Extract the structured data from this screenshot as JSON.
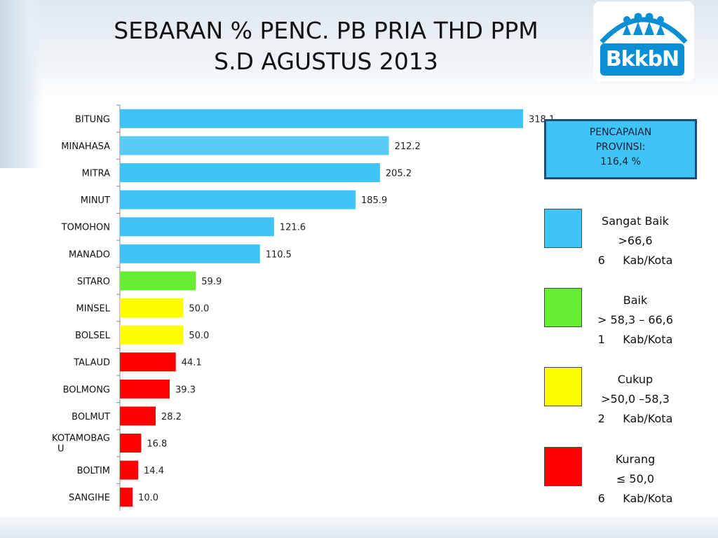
{
  "title": {
    "line1": "SEBARAN % PENC. PB PRIA THD PPM",
    "line2": "S.D AGUSTUS 2013"
  },
  "logo": {
    "text": "BkkbN",
    "icon": "family-figures-icon",
    "color": "#0a8fd4"
  },
  "achievement": {
    "line1": "PENCAPAIAN",
    "line2": "PROVINSI:",
    "line3": "116,4 %"
  },
  "legend": [
    {
      "label": "Sangat Baik",
      "range": ">66,6",
      "count": "6",
      "unit": "Kab/Kota",
      "color": "#3fc5f5"
    },
    {
      "label": "Baik",
      "range": "> 58,3 – 66,6",
      "count": "1",
      "unit": "Kab/Kota",
      "color": "#66ee33"
    },
    {
      "label": "Cukup",
      "range": ">50,0 –58,3",
      "count": "2",
      "unit": "Kab/Kota",
      "color": "#ffff00"
    },
    {
      "label": "Kurang",
      "range": "≤ 50,0",
      "count": "6",
      "unit": "Kab/Kota",
      "color": "#ff0000"
    }
  ],
  "chart_data": {
    "type": "bar",
    "orientation": "horizontal",
    "title": "SEBARAN % PENC. PB PRIA THD PPM S.D AGUSTUS 2013",
    "xlabel": "",
    "ylabel": "",
    "grid": false,
    "categories": [
      "BITUNG",
      "MINAHASA",
      "MITRA",
      "MINUT",
      "TOMOHON",
      "MANADO",
      "SITARO",
      "MINSEL",
      "BOLSEL",
      "TALAUD",
      "BOLMONG",
      "BOLMUT",
      "KOTAMOBAGU",
      "BOLTIM",
      "SANGIHE"
    ],
    "category_display": [
      "BITUNG",
      "MINAHASA",
      "MITRA",
      "MINUT",
      "TOMOHON",
      "MANADO",
      "SITARO",
      "MINSEL",
      "BOLSEL",
      "TALAUD",
      "BOLMONG",
      "BOLMUT",
      "KOTAMOBAG\nU",
      "BOLTIM",
      "SANGIHE"
    ],
    "values": [
      318.1,
      212.2,
      205.2,
      185.9,
      121.6,
      110.5,
      59.9,
      50.0,
      50.0,
      44.1,
      39.3,
      28.2,
      16.8,
      14.4,
      10.0
    ],
    "value_labels": [
      "318.1",
      "212.2",
      "205.2",
      "185.9",
      "121.6",
      "110.5",
      "59.9",
      "50.0",
      "50.0",
      "44.1",
      "39.3",
      "28.2",
      "16.8",
      "14.4",
      "10.0"
    ],
    "colors": [
      "#3fc5f5",
      "#5bcbf5",
      "#3fc5f5",
      "#3fc5f5",
      "#3fc5f5",
      "#3fc5f5",
      "#66ee33",
      "#ffff00",
      "#ffff00",
      "#ff0000",
      "#ff0000",
      "#ff0000",
      "#ff0000",
      "#ff0000",
      "#ff0000"
    ],
    "xlim": [
      0,
      318.1
    ]
  }
}
